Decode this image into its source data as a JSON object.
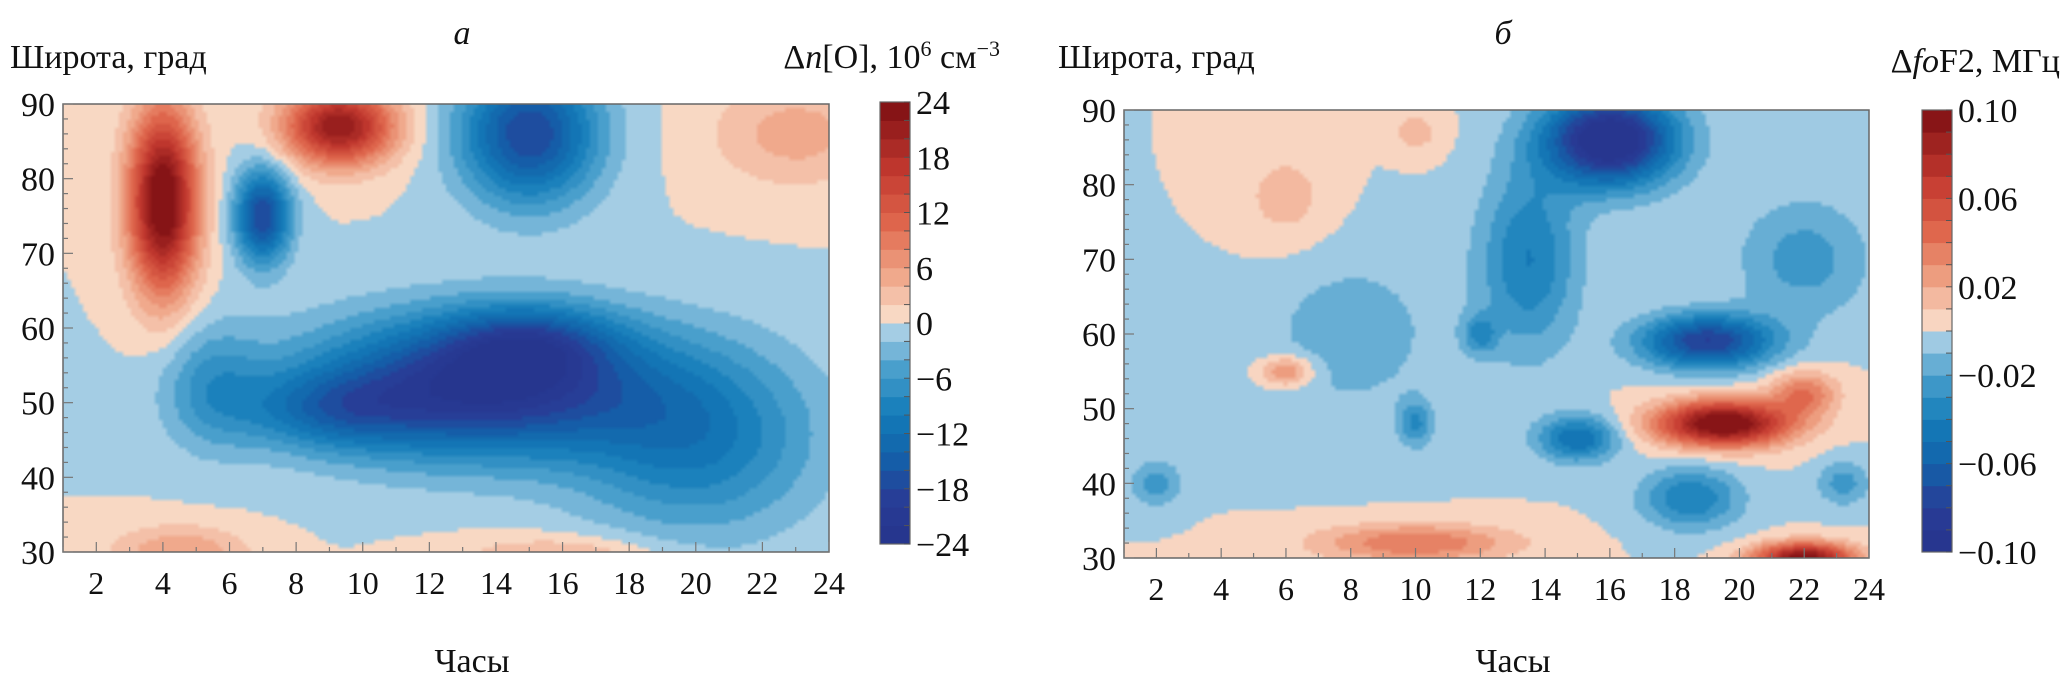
{
  "chart_data": [
    {
      "type": "heatmap",
      "panel_label": "а",
      "ylabel": "Широта, град",
      "xlabel": "Часы",
      "colorbar_label": {
        "prefix": "Δ",
        "var": "n",
        "bracket": "[O], 10",
        "exp": "6",
        "unit": " см",
        "unit_exp": "−3"
      },
      "x_ticks": [
        2,
        4,
        6,
        8,
        10,
        12,
        14,
        16,
        18,
        20,
        22,
        24
      ],
      "y_ticks": [
        30,
        40,
        50,
        60,
        70,
        80,
        90
      ],
      "xlim": [
        1,
        24
      ],
      "ylim": [
        30,
        90
      ],
      "color_levels": [
        -24,
        -22,
        -20,
        -18,
        -16,
        -14,
        -12,
        -10,
        -8,
        -6,
        -4,
        -2,
        0,
        2,
        4,
        6,
        8,
        10,
        12,
        14,
        16,
        18,
        20,
        22,
        24
      ],
      "colorbar_tick_values": [
        24,
        18,
        12,
        6,
        0,
        -6,
        -12,
        -18,
        -24
      ],
      "colorbar_tick_labels": [
        "24",
        "18",
        "12",
        "6",
        "0",
        "−6",
        "−12",
        "−18",
        "−24"
      ],
      "features": [
        {
          "x": 4.0,
          "y": 77,
          "sx": 1.0,
          "sy": 12,
          "amp": 26
        },
        {
          "x": 9.3,
          "y": 87,
          "sx": 1.6,
          "sy": 5,
          "amp": 22
        },
        {
          "x": 4.5,
          "y": 30,
          "sx": 2.0,
          "sy": 3.5,
          "amp": 6
        },
        {
          "x": 16.0,
          "y": 29,
          "sx": 3.0,
          "sy": 3,
          "amp": 5
        },
        {
          "x": 13.5,
          "y": 52,
          "sx": 5.0,
          "sy": 9,
          "amp": -22
        },
        {
          "x": 15.0,
          "y": 58,
          "sx": 2.5,
          "sy": 5,
          "amp": -10
        },
        {
          "x": 7.0,
          "y": 75,
          "sx": 0.8,
          "sy": 6,
          "amp": -18
        },
        {
          "x": 15.0,
          "y": 86,
          "sx": 2.0,
          "sy": 9,
          "amp": -18
        },
        {
          "x": 20.0,
          "y": 45,
          "sx": 3.5,
          "sy": 12,
          "amp": -10
        },
        {
          "x": 9.0,
          "y": 49,
          "sx": 2.5,
          "sy": 5,
          "amp": -8
        },
        {
          "x": 5.5,
          "y": 52,
          "sx": 1.5,
          "sy": 8,
          "amp": -6
        },
        {
          "x": 23.0,
          "y": 86,
          "sx": 2.5,
          "sy": 7,
          "amp": 5
        }
      ]
    },
    {
      "type": "heatmap",
      "panel_label": "б",
      "ylabel": "Широта, град",
      "xlabel": "Часы",
      "colorbar_label": {
        "prefix": "Δ",
        "var": "fo",
        "bracket": "F2, МГц",
        "exp": "",
        "unit": "",
        "unit_exp": ""
      },
      "x_ticks": [
        2,
        4,
        6,
        8,
        10,
        12,
        14,
        16,
        18,
        20,
        22,
        24
      ],
      "y_ticks": [
        30,
        40,
        50,
        60,
        70,
        80,
        90
      ],
      "xlim": [
        1,
        24
      ],
      "ylim": [
        30,
        90
      ],
      "color_levels": [
        -0.1,
        -0.09,
        -0.08,
        -0.07,
        -0.06,
        -0.05,
        -0.04,
        -0.03,
        -0.02,
        -0.01,
        0.0,
        0.01,
        0.02,
        0.03,
        0.04,
        0.05,
        0.06,
        0.07,
        0.08,
        0.09,
        0.1
      ],
      "colorbar_tick_values": [
        0.1,
        0.06,
        0.02,
        -0.02,
        -0.06,
        -0.1
      ],
      "colorbar_tick_labels": [
        "0.10",
        "0.06",
        "0.02",
        "−0.02",
        "−0.06",
        "−0.10"
      ],
      "features": [
        {
          "x": 16.0,
          "y": 86,
          "sx": 2.0,
          "sy": 6,
          "amp": -0.11
        },
        {
          "x": 19.0,
          "y": 59,
          "sx": 2.0,
          "sy": 3.5,
          "amp": -0.08
        },
        {
          "x": 13.5,
          "y": 70,
          "sx": 1.5,
          "sy": 12,
          "amp": -0.04
        },
        {
          "x": 15.0,
          "y": 46,
          "sx": 1.2,
          "sy": 3,
          "amp": -0.05
        },
        {
          "x": 18.5,
          "y": 38,
          "sx": 1.5,
          "sy": 4,
          "amp": -0.04
        },
        {
          "x": 10.0,
          "y": 48,
          "sx": 0.5,
          "sy": 3,
          "amp": -0.03
        },
        {
          "x": 12.0,
          "y": 60,
          "sx": 0.5,
          "sy": 2.5,
          "amp": -0.03
        },
        {
          "x": 22.0,
          "y": 70,
          "sx": 2.0,
          "sy": 8,
          "amp": -0.025
        },
        {
          "x": 2.0,
          "y": 40,
          "sx": 0.8,
          "sy": 3,
          "amp": -0.025
        },
        {
          "x": 23.2,
          "y": 40,
          "sx": 0.8,
          "sy": 3,
          "amp": -0.025
        },
        {
          "x": 8.0,
          "y": 60,
          "sx": 3.0,
          "sy": 12,
          "amp": -0.015
        },
        {
          "x": 19.5,
          "y": 48,
          "sx": 2.0,
          "sy": 3,
          "amp": 0.11
        },
        {
          "x": 22.0,
          "y": 52,
          "sx": 1.0,
          "sy": 3,
          "amp": 0.04
        },
        {
          "x": 22.0,
          "y": 30,
          "sx": 1.5,
          "sy": 2,
          "amp": 0.1
        },
        {
          "x": 10.0,
          "y": 32,
          "sx": 3.0,
          "sy": 2.5,
          "amp": 0.04
        },
        {
          "x": 6.0,
          "y": 78,
          "sx": 1.5,
          "sy": 7,
          "amp": 0.015
        },
        {
          "x": 6.0,
          "y": 55,
          "sx": 0.8,
          "sy": 2,
          "amp": 0.035
        },
        {
          "x": 10.0,
          "y": 87,
          "sx": 0.8,
          "sy": 3,
          "amp": 0.015
        }
      ]
    }
  ]
}
